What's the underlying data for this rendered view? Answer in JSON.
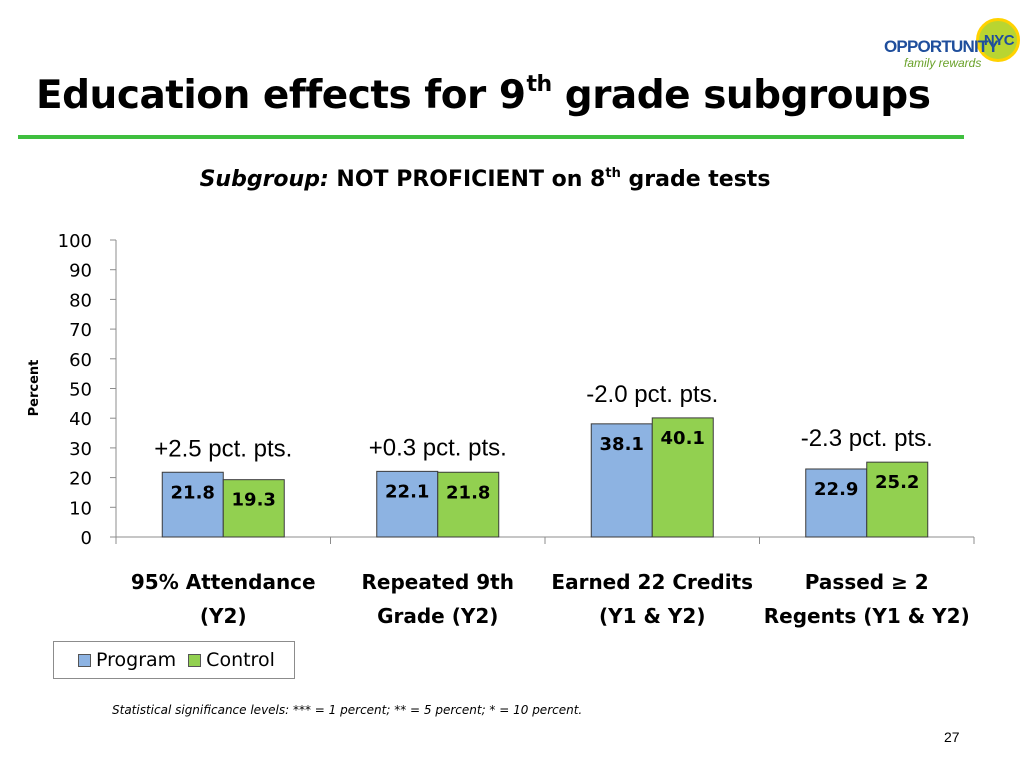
{
  "slide": {
    "title_main": "Education effects for 9",
    "title_sup": "th",
    "title_tail": " grade subgroups",
    "footnote": "Statistical significance levels:  *** = 1 percent; ** = 5 percent; * = 10 percent.",
    "page_number": "27"
  },
  "logo": {
    "main": "OPPORTUNITY",
    "badge": "NYC",
    "tagline": "family rewards"
  },
  "colors": {
    "program": "#8db3e2",
    "control": "#92d050",
    "accent_rule": "#3fbf3f"
  },
  "chart_data": {
    "type": "bar",
    "title_italic": "Subgroup:",
    "title_main": " NOT PROFICIENT on 8",
    "title_sup": "th",
    "title_tail": " grade tests",
    "ylabel": "Percent",
    "ylim": [
      0,
      100
    ],
    "yticks": [
      0,
      10,
      20,
      30,
      40,
      50,
      60,
      70,
      80,
      90,
      100
    ],
    "categories": [
      [
        "95% Attendance",
        "(Y2)"
      ],
      [
        "Repeated 9th",
        "Grade (Y2)"
      ],
      [
        "Earned 22 Credits",
        "(Y1 & Y2)"
      ],
      [
        "Passed ≥ 2",
        "Regents (Y1 & Y2)"
      ]
    ],
    "series": [
      {
        "name": "Program",
        "values": [
          21.8,
          22.1,
          38.1,
          22.9
        ],
        "labels": [
          "21.8",
          "22.1",
          "38.1",
          "22.9"
        ]
      },
      {
        "name": "Control",
        "values": [
          19.3,
          21.8,
          40.1,
          25.2
        ],
        "labels": [
          "19.3",
          "21.8",
          "40.1",
          "25.2"
        ]
      }
    ],
    "annotations": [
      "+2.5 pct. pts.",
      "+0.3 pct. pts.",
      "-2.0 pct. pts.",
      "-2.3 pct. pts."
    ],
    "legend_position": "bottom-left",
    "grid": false
  }
}
